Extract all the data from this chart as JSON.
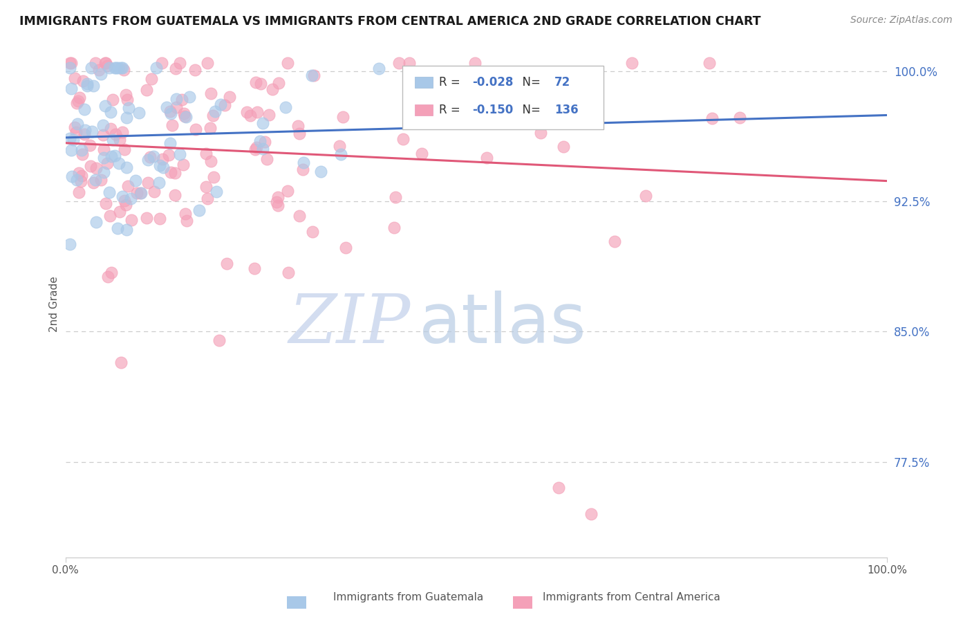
{
  "title": "IMMIGRANTS FROM GUATEMALA VS IMMIGRANTS FROM CENTRAL AMERICA 2ND GRADE CORRELATION CHART",
  "source": "Source: ZipAtlas.com",
  "ylabel": "2nd Grade",
  "legend_label1": "Immigrants from Guatemala",
  "legend_label2": "Immigrants from Central America",
  "R1": -0.028,
  "N1": 72,
  "R2": -0.15,
  "N2": 136,
  "color1": "#a8c8e8",
  "color2": "#f4a0b8",
  "trend_color1": "#4472c4",
  "trend_color2": "#e05878",
  "tick_color": "#4472c4",
  "title_color": "#1a1a1a",
  "source_color": "#888888",
  "grid_color": "#cccccc",
  "xlim": [
    0.0,
    1.0
  ],
  "ylim": [
    0.72,
    1.012
  ],
  "yticks": [
    0.775,
    0.85,
    0.925,
    1.0
  ],
  "ytick_labels": [
    "77.5%",
    "85.0%",
    "92.5%",
    "100.0%"
  ],
  "xtick_labels": [
    "0.0%",
    "100.0%"
  ],
  "watermark_zip_color": "#c8d8ee",
  "watermark_atlas_color": "#c0d4e8"
}
